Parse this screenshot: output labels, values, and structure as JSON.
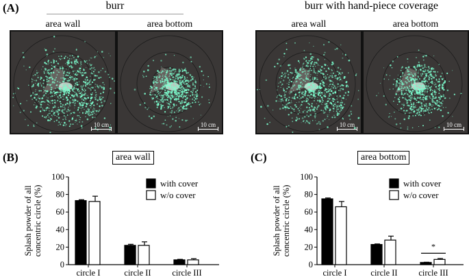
{
  "panels": {
    "A": "(A)",
    "B": "(B)",
    "C": "(C)"
  },
  "photos": {
    "group_left_title": "burr",
    "group_right_title": "burr with hand-piece coverage",
    "captions": [
      "area wall",
      "area bottom",
      "area wall",
      "area bottom"
    ],
    "scale_label": "10 cm"
  },
  "colors": {
    "splash": "#7dffcf",
    "background": "#3a3736",
    "with_cover_fill": "#000000",
    "without_cover_fill": "#ffffff"
  },
  "chart_data": [
    {
      "type": "bar",
      "title": "area wall",
      "ylabel_line1": "Splash powder of all",
      "ylabel_line2": "concentric circle (%)",
      "ylim": [
        0,
        100
      ],
      "yticks": [
        "0",
        "20",
        "40",
        "60",
        "80",
        "100"
      ],
      "categories": [
        "circle I",
        "circle II",
        "circle III"
      ],
      "series": [
        {
          "name": "with cover",
          "values": [
            73,
            22,
            5.5
          ],
          "errors": [
            1,
            1.2,
            0.6
          ]
        },
        {
          "name": "w/o cover",
          "values": [
            72,
            22,
            5.5
          ],
          "errors": [
            6,
            4,
            1.3
          ]
        }
      ],
      "significance": [],
      "legend": "top-right"
    },
    {
      "type": "bar",
      "title": "area bottom",
      "ylabel_line1": "Splash powder of all",
      "ylabel_line2": "concentric circle (%)",
      "ylim": [
        0,
        100
      ],
      "yticks": [
        "0",
        "20",
        "40",
        "60",
        "80",
        "100"
      ],
      "categories": [
        "circle I",
        "circle II",
        "circle III"
      ],
      "series": [
        {
          "name": "with cover",
          "values": [
            75,
            23,
            2.5
          ],
          "errors": [
            1,
            0.6,
            0.3
          ]
        },
        {
          "name": "w/o cover",
          "values": [
            66,
            28,
            6
          ],
          "errors": [
            6,
            4.5,
            1
          ]
        }
      ],
      "significance": [
        {
          "category": 2,
          "label": "*"
        }
      ],
      "legend": "top-right"
    }
  ]
}
